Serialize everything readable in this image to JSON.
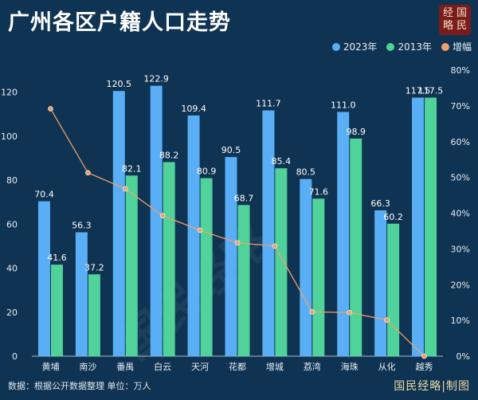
{
  "header": {
    "title": "广州各区户籍人口走势",
    "seal_chars": [
      "经",
      "国",
      "略",
      "民"
    ]
  },
  "legend": {
    "items": [
      {
        "label": "2023年",
        "color": "#5aaef5"
      },
      {
        "label": "2013年",
        "color": "#4fd39a"
      },
      {
        "label": "增幅",
        "color": "#f0a06a"
      }
    ]
  },
  "footer": {
    "source": "数据：根据公开数据整理 单位：万人",
    "brand": "国民经略|制图"
  },
  "watermark": "国民经略",
  "chart_data": {
    "type": "bar",
    "categories": [
      "黄埔",
      "南沙",
      "番禺",
      "白云",
      "天河",
      "花都",
      "增城",
      "荔湾",
      "海珠",
      "从化",
      "越秀"
    ],
    "series": [
      {
        "name": "2023年",
        "values": [
          70.4,
          56.3,
          120.5,
          122.9,
          109.4,
          90.5,
          111.7,
          80.5,
          111.0,
          66.3,
          117.5
        ],
        "color": "#5aaef5"
      },
      {
        "name": "2013年",
        "values": [
          41.6,
          37.2,
          82.1,
          88.2,
          80.9,
          68.7,
          85.4,
          71.6,
          98.9,
          60.2,
          117.5
        ],
        "color": "#4fd39a"
      },
      {
        "name": "增幅",
        "values": [
          69.2,
          51.3,
          46.8,
          39.3,
          35.2,
          31.7,
          30.8,
          12.4,
          12.2,
          10.1,
          0.0
        ],
        "color": "#f0a06a",
        "axis": "right",
        "kind": "line"
      }
    ],
    "y_left": {
      "min": 0,
      "max": 130,
      "ticks": [
        0,
        20,
        40,
        60,
        80,
        100,
        120
      ]
    },
    "y_right": {
      "min": 0,
      "max": 80,
      "ticks": [
        "0%",
        "10%",
        "20%",
        "30%",
        "40%",
        "50%",
        "60%",
        "70%",
        "80%"
      ]
    },
    "grid": false,
    "legend_position": "top-right"
  }
}
